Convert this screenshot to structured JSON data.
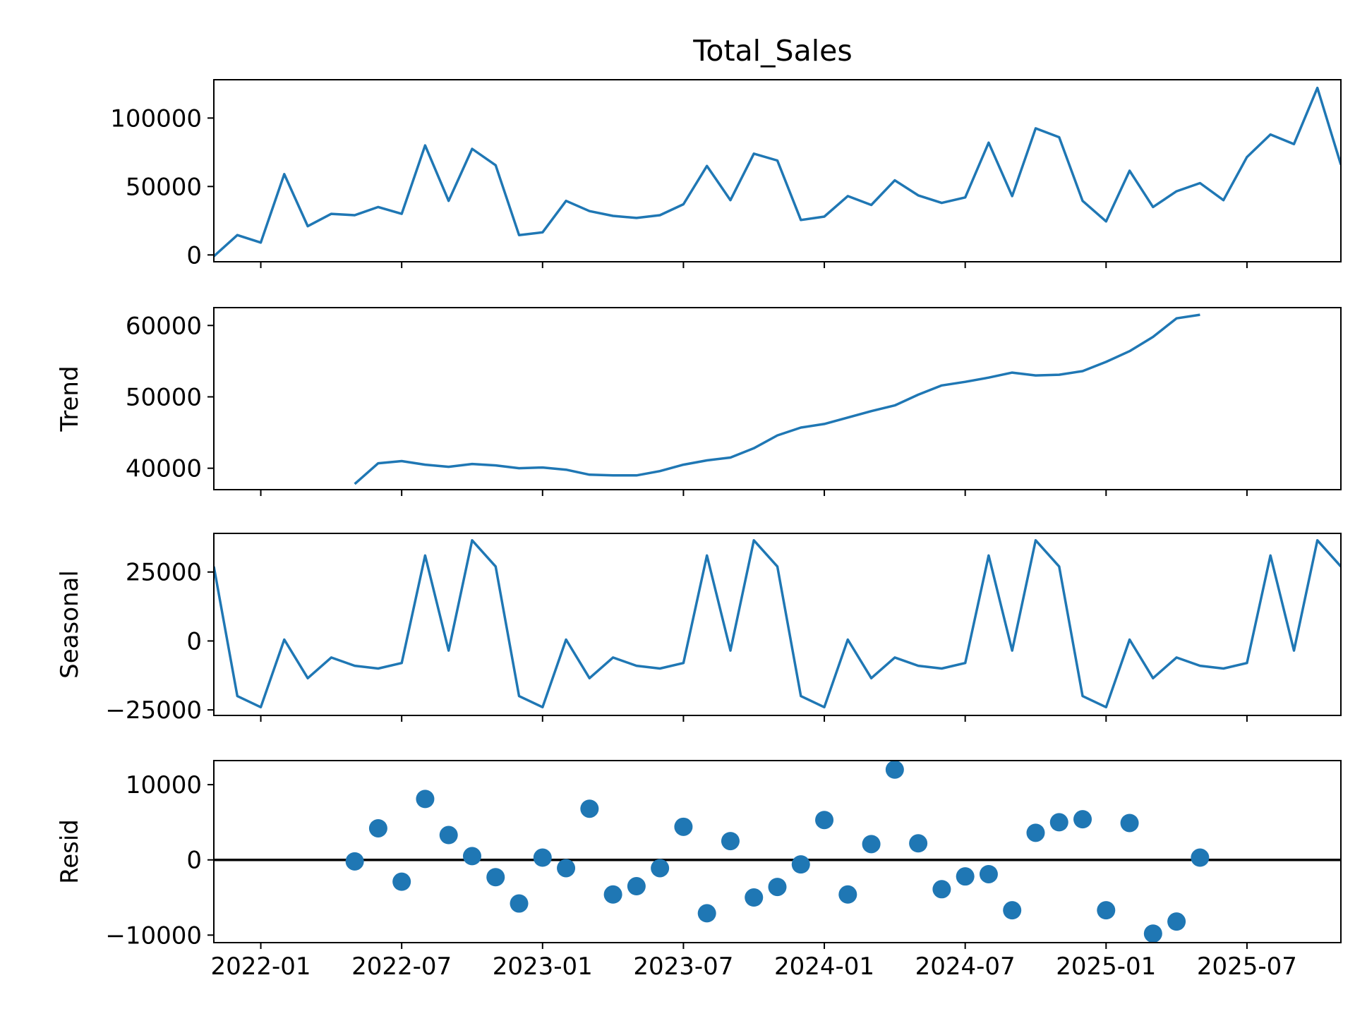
{
  "colors": {
    "series": "#1f77b4",
    "axis": "#000000",
    "background": "#ffffff",
    "zero_line": "#000000"
  },
  "chart_data": {
    "type": "line",
    "title": "Total_Sales",
    "x_start": "2021-11",
    "x_axis": {
      "ticks": [
        "2022-01",
        "2022-07",
        "2023-01",
        "2023-07",
        "2024-01",
        "2024-07",
        "2025-01",
        "2025-07"
      ],
      "xlim": [
        "2021-11",
        "2025-11"
      ]
    },
    "panels": [
      {
        "key": "observed",
        "ylabel": "",
        "kind": "line",
        "ylim": [
          -5000,
          128000
        ],
        "yticks": [
          0,
          50000,
          100000
        ],
        "yticklabels": [
          "0",
          "50000",
          "100000"
        ],
        "values": [
          -1000,
          14500,
          9000,
          59000,
          21000,
          30000,
          29000,
          35000,
          30000,
          80000,
          39500,
          77500,
          65500,
          14500,
          16500,
          39500,
          32000,
          28500,
          27000,
          29000,
          37000,
          65000,
          40000,
          74000,
          69000,
          25500,
          28000,
          43000,
          36500,
          54500,
          43500,
          38000,
          42000,
          82000,
          43000,
          92500,
          86000,
          39500,
          24500,
          61500,
          35000,
          46500,
          52500,
          40000,
          71500,
          88000,
          81000,
          122000,
          66000
        ]
      },
      {
        "key": "trend",
        "ylabel": "Trend",
        "kind": "line",
        "ylim": [
          37000,
          62500
        ],
        "yticks": [
          40000,
          50000,
          60000
        ],
        "yticklabels": [
          "40000",
          "50000",
          "60000"
        ],
        "values": [
          null,
          null,
          null,
          null,
          null,
          null,
          37800,
          40700,
          41000,
          40500,
          40200,
          40600,
          40400,
          40000,
          40100,
          39800,
          39100,
          39000,
          39000,
          39600,
          40500,
          41100,
          41500,
          42800,
          44600,
          45700,
          46200,
          47100,
          48000,
          48800,
          50300,
          51600,
          52100,
          52700,
          53400,
          53000,
          53100,
          53600,
          54900,
          56400,
          58400,
          61000,
          61500,
          null,
          null,
          null,
          null,
          null,
          null
        ]
      },
      {
        "key": "seasonal",
        "ylabel": "Seasonal",
        "kind": "line",
        "ylim": [
          -27000,
          39000
        ],
        "yticks": [
          -25000,
          0,
          25000
        ],
        "yticklabels": [
          "−25000",
          "0",
          "25000"
        ],
        "values": [
          27000,
          -20000,
          -24000,
          500,
          -13500,
          -6000,
          -9000,
          -10000,
          -8000,
          31000,
          -3500,
          36500,
          27000,
          -20000,
          -24000,
          500,
          -13500,
          -6000,
          -9000,
          -10000,
          -8000,
          31000,
          -3500,
          36500,
          27000,
          -20000,
          -24000,
          500,
          -13500,
          -6000,
          -9000,
          -10000,
          -8000,
          31000,
          -3500,
          36500,
          27000,
          -20000,
          -24000,
          500,
          -13500,
          -6000,
          -9000,
          -10000,
          -8000,
          31000,
          -3500,
          36500,
          27000
        ]
      },
      {
        "key": "resid",
        "ylabel": "Resid",
        "kind": "scatter",
        "ylim": [
          -11000,
          13200
        ],
        "yticks": [
          -10000,
          0,
          10000
        ],
        "yticklabels": [
          "−10000",
          "0",
          "10000"
        ],
        "zero_line": true,
        "values": [
          null,
          null,
          null,
          null,
          null,
          null,
          -200,
          4200,
          -2900,
          8100,
          3300,
          500,
          -2300,
          -5800,
          300,
          -1100,
          6800,
          -4600,
          -3500,
          -1100,
          4400,
          -7100,
          2500,
          -5000,
          -3600,
          -600,
          5300,
          -4600,
          2100,
          12000,
          2200,
          -3900,
          -2200,
          -1900,
          -6700,
          3600,
          5000,
          5400,
          -6700,
          4900,
          -9800,
          -8200,
          300,
          null,
          null,
          null,
          null,
          null,
          null
        ]
      }
    ]
  }
}
